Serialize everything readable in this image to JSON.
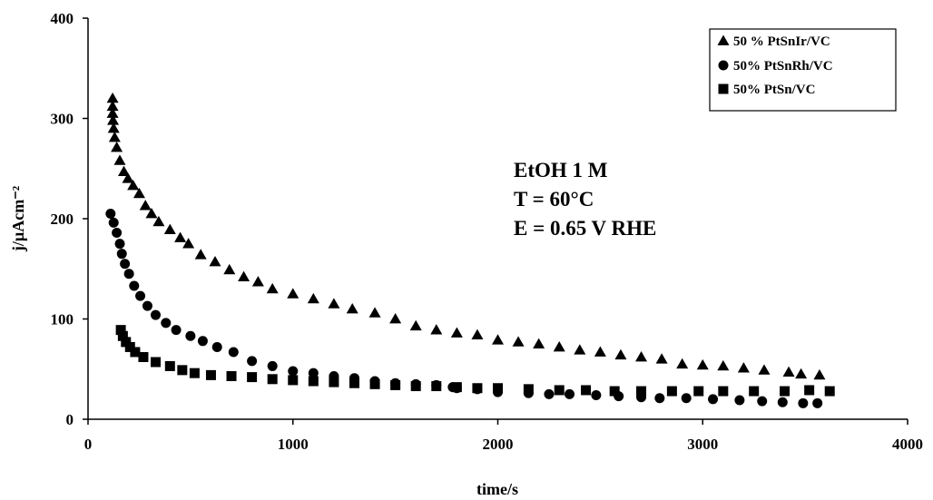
{
  "chart_data": {
    "type": "scatter",
    "xlabel": "time/s",
    "ylabel": "j/µAcm⁻²",
    "xlim": [
      0,
      4000
    ],
    "ylim": [
      0,
      400
    ],
    "xticks": [
      "0",
      "1000",
      "2000",
      "3000",
      "4000"
    ],
    "yticks": [
      "0",
      "100",
      "200",
      "300",
      "400"
    ],
    "grid": false,
    "legend_position": "top-right",
    "annotations": [
      "EtOH 1 M",
      "T = 60°C",
      "E = 0.65 V RHE"
    ],
    "series": [
      {
        "name": "50 % PtSnIr/VC",
        "marker": "triangle",
        "color": "#000000",
        "points": [
          [
            120,
            320
          ],
          [
            120,
            312
          ],
          [
            120,
            305
          ],
          [
            122,
            298
          ],
          [
            125,
            290
          ],
          [
            130,
            281
          ],
          [
            140,
            271
          ],
          [
            155,
            258
          ],
          [
            175,
            247
          ],
          [
            195,
            240
          ],
          [
            220,
            233
          ],
          [
            250,
            225
          ],
          [
            280,
            213
          ],
          [
            310,
            205
          ],
          [
            345,
            197
          ],
          [
            400,
            189
          ],
          [
            450,
            181
          ],
          [
            490,
            175
          ],
          [
            550,
            164
          ],
          [
            620,
            157
          ],
          [
            690,
            149
          ],
          [
            760,
            142
          ],
          [
            830,
            137
          ],
          [
            900,
            130
          ],
          [
            1000,
            125
          ],
          [
            1100,
            120
          ],
          [
            1200,
            115
          ],
          [
            1290,
            110
          ],
          [
            1400,
            106
          ],
          [
            1500,
            100
          ],
          [
            1600,
            93
          ],
          [
            1700,
            89
          ],
          [
            1800,
            86
          ],
          [
            1900,
            84
          ],
          [
            2000,
            79
          ],
          [
            2100,
            77
          ],
          [
            2200,
            75
          ],
          [
            2300,
            72
          ],
          [
            2400,
            69
          ],
          [
            2500,
            67
          ],
          [
            2600,
            64
          ],
          [
            2700,
            62
          ],
          [
            2800,
            60
          ],
          [
            2900,
            55
          ],
          [
            3000,
            54
          ],
          [
            3100,
            53
          ],
          [
            3200,
            51
          ],
          [
            3300,
            49
          ],
          [
            3420,
            47
          ],
          [
            3480,
            45
          ],
          [
            3570,
            44
          ]
        ]
      },
      {
        "name": "50% PtSnRh/VC",
        "marker": "circle",
        "color": "#000000",
        "points": [
          [
            110,
            205
          ],
          [
            125,
            196
          ],
          [
            140,
            186
          ],
          [
            155,
            175
          ],
          [
            165,
            165
          ],
          [
            180,
            155
          ],
          [
            200,
            145
          ],
          [
            225,
            133
          ],
          [
            255,
            123
          ],
          [
            290,
            113
          ],
          [
            330,
            104
          ],
          [
            380,
            96
          ],
          [
            430,
            89
          ],
          [
            500,
            83
          ],
          [
            560,
            78
          ],
          [
            630,
            72
          ],
          [
            710,
            67
          ],
          [
            800,
            58
          ],
          [
            900,
            53
          ],
          [
            1000,
            48
          ],
          [
            1100,
            46
          ],
          [
            1200,
            43
          ],
          [
            1300,
            41
          ],
          [
            1400,
            38
          ],
          [
            1500,
            36
          ],
          [
            1600,
            35
          ],
          [
            1700,
            34
          ],
          [
            1780,
            32
          ],
          [
            1800,
            31
          ],
          [
            1900,
            30
          ],
          [
            2000,
            27
          ],
          [
            2150,
            26
          ],
          [
            2250,
            25
          ],
          [
            2350,
            25
          ],
          [
            2480,
            24
          ],
          [
            2590,
            23
          ],
          [
            2700,
            22
          ],
          [
            2790,
            21
          ],
          [
            2920,
            21
          ],
          [
            3050,
            20
          ],
          [
            3180,
            19
          ],
          [
            3290,
            18
          ],
          [
            3390,
            17
          ],
          [
            3490,
            16
          ],
          [
            3560,
            16
          ]
        ]
      },
      {
        "name": "50% PtSn/VC",
        "marker": "square",
        "color": "#000000",
        "points": [
          [
            160,
            89
          ],
          [
            170,
            83
          ],
          [
            185,
            77
          ],
          [
            205,
            72
          ],
          [
            230,
            67
          ],
          [
            270,
            62
          ],
          [
            330,
            57
          ],
          [
            400,
            53
          ],
          [
            460,
            49
          ],
          [
            520,
            46
          ],
          [
            600,
            44
          ],
          [
            700,
            43
          ],
          [
            800,
            42
          ],
          [
            900,
            40
          ],
          [
            1000,
            39
          ],
          [
            1100,
            38
          ],
          [
            1200,
            37
          ],
          [
            1300,
            36
          ],
          [
            1400,
            35
          ],
          [
            1500,
            34
          ],
          [
            1600,
            33
          ],
          [
            1700,
            33
          ],
          [
            1800,
            32
          ],
          [
            1900,
            31
          ],
          [
            2000,
            31
          ],
          [
            2150,
            30
          ],
          [
            2300,
            29
          ],
          [
            2430,
            29
          ],
          [
            2570,
            28
          ],
          [
            2700,
            28
          ],
          [
            2850,
            28
          ],
          [
            2980,
            28
          ],
          [
            3100,
            28
          ],
          [
            3250,
            28
          ],
          [
            3400,
            28
          ],
          [
            3520,
            29
          ],
          [
            3620,
            28
          ]
        ]
      }
    ]
  }
}
